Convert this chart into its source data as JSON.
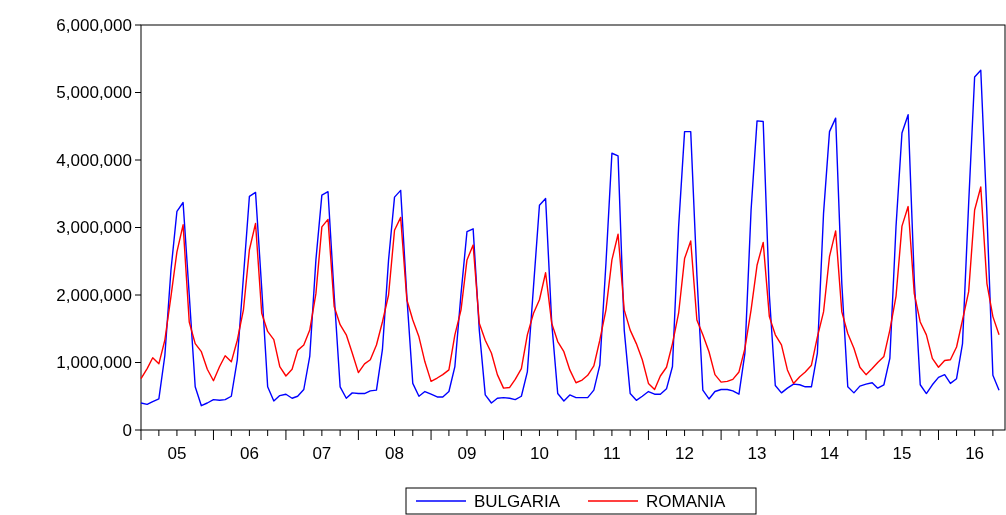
{
  "chart_data": {
    "type": "line",
    "x": [
      "2005-01",
      "2005-02",
      "2005-03",
      "2005-04",
      "2005-05",
      "2005-06",
      "2005-07",
      "2005-08",
      "2005-09",
      "2005-10",
      "2005-11",
      "2005-12",
      "2006-01",
      "2006-02",
      "2006-03",
      "2006-04",
      "2006-05",
      "2006-06",
      "2006-07",
      "2006-08",
      "2006-09",
      "2006-10",
      "2006-11",
      "2006-12",
      "2007-01",
      "2007-02",
      "2007-03",
      "2007-04",
      "2007-05",
      "2007-06",
      "2007-07",
      "2007-08",
      "2007-09",
      "2007-10",
      "2007-11",
      "2007-12",
      "2008-01",
      "2008-02",
      "2008-03",
      "2008-04",
      "2008-05",
      "2008-06",
      "2008-07",
      "2008-08",
      "2008-09",
      "2008-10",
      "2008-11",
      "2008-12",
      "2009-01",
      "2009-02",
      "2009-03",
      "2009-04",
      "2009-05",
      "2009-06",
      "2009-07",
      "2009-08",
      "2009-09",
      "2009-10",
      "2009-11",
      "2009-12",
      "2010-01",
      "2010-02",
      "2010-03",
      "2010-04",
      "2010-05",
      "2010-06",
      "2010-07",
      "2010-08",
      "2010-09",
      "2010-10",
      "2010-11",
      "2010-12",
      "2011-01",
      "2011-02",
      "2011-03",
      "2011-04",
      "2011-05",
      "2011-06",
      "2011-07",
      "2011-08",
      "2011-09",
      "2011-10",
      "2011-11",
      "2011-12",
      "2012-01",
      "2012-02",
      "2012-03",
      "2012-04",
      "2012-05",
      "2012-06",
      "2012-07",
      "2012-08",
      "2012-09",
      "2012-10",
      "2012-11",
      "2012-12",
      "2013-01",
      "2013-02",
      "2013-03",
      "2013-04",
      "2013-05",
      "2013-06",
      "2013-07",
      "2013-08",
      "2013-09",
      "2013-10",
      "2013-11",
      "2013-12",
      "2014-01",
      "2014-02",
      "2014-03",
      "2014-04",
      "2014-05",
      "2014-06",
      "2014-07",
      "2014-08",
      "2014-09",
      "2014-10",
      "2014-11",
      "2014-12",
      "2015-01",
      "2015-02",
      "2015-03",
      "2015-04",
      "2015-05",
      "2015-06",
      "2015-07",
      "2015-08",
      "2015-09",
      "2015-10",
      "2015-11",
      "2015-12",
      "2016-01",
      "2016-02",
      "2016-03",
      "2016-04",
      "2016-05",
      "2016-06",
      "2016-07",
      "2016-08",
      "2016-09",
      "2016-10",
      "2016-11"
    ],
    "series": [
      {
        "name": "BULGARIA",
        "color": "#0000ff",
        "values": [
          400000,
          380000,
          420000,
          460000,
          1100000,
          2370000,
          3240000,
          3370000,
          2000000,
          640000,
          360000,
          400000,
          450000,
          440000,
          450000,
          500000,
          1040000,
          2270000,
          3460000,
          3520000,
          2100000,
          640000,
          430000,
          510000,
          530000,
          470000,
          500000,
          600000,
          1090000,
          2520000,
          3480000,
          3530000,
          2000000,
          640000,
          470000,
          550000,
          540000,
          540000,
          580000,
          590000,
          1190000,
          2520000,
          3450000,
          3550000,
          1980000,
          690000,
          500000,
          570000,
          530000,
          490000,
          490000,
          570000,
          940000,
          2020000,
          2940000,
          2980000,
          1480000,
          520000,
          400000,
          470000,
          480000,
          470000,
          450000,
          500000,
          860000,
          2120000,
          3330000,
          3430000,
          1580000,
          540000,
          430000,
          520000,
          480000,
          480000,
          480000,
          590000,
          960000,
          2470000,
          4100000,
          4060000,
          1480000,
          540000,
          440000,
          500000,
          570000,
          530000,
          530000,
          610000,
          940000,
          3010000,
          4420000,
          4420000,
          2300000,
          590000,
          460000,
          570000,
          600000,
          600000,
          580000,
          530000,
          1140000,
          3260000,
          4580000,
          4570000,
          2000000,
          660000,
          550000,
          620000,
          680000,
          670000,
          640000,
          640000,
          1140000,
          3210000,
          4420000,
          4620000,
          2170000,
          640000,
          550000,
          650000,
          680000,
          700000,
          620000,
          670000,
          1060000,
          3010000,
          4400000,
          4670000,
          2220000,
          670000,
          540000,
          670000,
          780000,
          820000,
          690000,
          760000,
          1280000,
          3360000,
          5230000,
          5330000,
          3200000,
          810000,
          590000
        ]
      },
      {
        "name": "ROMANIA",
        "color": "#ff0000",
        "values": [
          760000,
          910000,
          1070000,
          980000,
          1330000,
          1980000,
          2640000,
          3040000,
          1600000,
          1280000,
          1160000,
          900000,
          730000,
          940000,
          1100000,
          1010000,
          1330000,
          1780000,
          2670000,
          3060000,
          1730000,
          1460000,
          1340000,
          940000,
          800000,
          900000,
          1180000,
          1260000,
          1480000,
          2020000,
          3010000,
          3120000,
          1830000,
          1560000,
          1410000,
          1140000,
          850000,
          980000,
          1040000,
          1260000,
          1600000,
          2000000,
          2960000,
          3150000,
          1930000,
          1630000,
          1380000,
          1010000,
          720000,
          770000,
          820000,
          890000,
          1410000,
          1780000,
          2520000,
          2740000,
          1580000,
          1330000,
          1140000,
          820000,
          620000,
          630000,
          750000,
          910000,
          1410000,
          1730000,
          1930000,
          2330000,
          1580000,
          1310000,
          1160000,
          890000,
          700000,
          740000,
          810000,
          950000,
          1330000,
          1780000,
          2520000,
          2900000,
          1780000,
          1480000,
          1280000,
          1040000,
          690000,
          600000,
          800000,
          930000,
          1280000,
          1730000,
          2540000,
          2800000,
          1630000,
          1410000,
          1160000,
          820000,
          710000,
          720000,
          750000,
          860000,
          1210000,
          1780000,
          2440000,
          2780000,
          1680000,
          1410000,
          1260000,
          890000,
          690000,
          790000,
          860000,
          960000,
          1380000,
          1750000,
          2570000,
          2950000,
          1750000,
          1430000,
          1210000,
          930000,
          820000,
          910000,
          1000000,
          1090000,
          1480000,
          1980000,
          3020000,
          3310000,
          2020000,
          1600000,
          1410000,
          1060000,
          930000,
          1030000,
          1040000,
          1230000,
          1630000,
          2050000,
          3260000,
          3600000,
          2170000,
          1680000,
          1410000
        ]
      }
    ],
    "xlim": [
      "2005-01",
      "2016-12"
    ],
    "xticks": [
      {
        "value": "2005-01",
        "label": null
      },
      {
        "value": "2005-04",
        "label": null
      },
      {
        "value": "2005-07",
        "label": "05"
      },
      {
        "value": "2005-10",
        "label": null
      },
      {
        "value": "2006-01",
        "label": null
      },
      {
        "value": "2006-04",
        "label": null
      },
      {
        "value": "2006-07",
        "label": "06"
      },
      {
        "value": "2006-10",
        "label": null
      },
      {
        "value": "2007-01",
        "label": null
      },
      {
        "value": "2007-04",
        "label": null
      },
      {
        "value": "2007-07",
        "label": "07"
      },
      {
        "value": "2007-10",
        "label": null
      },
      {
        "value": "2008-01",
        "label": null
      },
      {
        "value": "2008-04",
        "label": null
      },
      {
        "value": "2008-07",
        "label": "08"
      },
      {
        "value": "2008-10",
        "label": null
      },
      {
        "value": "2009-01",
        "label": null
      },
      {
        "value": "2009-04",
        "label": null
      },
      {
        "value": "2009-07",
        "label": "09"
      },
      {
        "value": "2009-10",
        "label": null
      },
      {
        "value": "2010-01",
        "label": null
      },
      {
        "value": "2010-04",
        "label": null
      },
      {
        "value": "2010-07",
        "label": "10"
      },
      {
        "value": "2010-10",
        "label": null
      },
      {
        "value": "2011-01",
        "label": null
      },
      {
        "value": "2011-04",
        "label": null
      },
      {
        "value": "2011-07",
        "label": "11"
      },
      {
        "value": "2011-10",
        "label": null
      },
      {
        "value": "2012-01",
        "label": null
      },
      {
        "value": "2012-04",
        "label": null
      },
      {
        "value": "2012-07",
        "label": "12"
      },
      {
        "value": "2012-10",
        "label": null
      },
      {
        "value": "2013-01",
        "label": null
      },
      {
        "value": "2013-04",
        "label": null
      },
      {
        "value": "2013-07",
        "label": "13"
      },
      {
        "value": "2013-10",
        "label": null
      },
      {
        "value": "2014-01",
        "label": null
      },
      {
        "value": "2014-04",
        "label": null
      },
      {
        "value": "2014-07",
        "label": "14"
      },
      {
        "value": "2014-10",
        "label": null
      },
      {
        "value": "2015-01",
        "label": null
      },
      {
        "value": "2015-04",
        "label": null
      },
      {
        "value": "2015-07",
        "label": "15"
      },
      {
        "value": "2015-10",
        "label": null
      },
      {
        "value": "2016-01",
        "label": null
      },
      {
        "value": "2016-04",
        "label": null
      },
      {
        "value": "2016-07",
        "label": "16"
      },
      {
        "value": "2016-10",
        "label": null
      }
    ],
    "ylim": [
      0,
      6000000
    ],
    "yticks": [
      0,
      {
        "value": 1000000,
        "label": "1,000,000"
      },
      {
        "value": 2000000,
        "label": "2,000,000"
      },
      {
        "value": 3000000,
        "label": "3,000,000"
      },
      {
        "value": 4000000,
        "label": "4,000,000"
      },
      {
        "value": 5000000,
        "label": "5,000,000"
      },
      {
        "value": 6000000,
        "label": "6,000,000"
      }
    ],
    "grid": false,
    "legend": "bottom",
    "line_style": "solid"
  }
}
